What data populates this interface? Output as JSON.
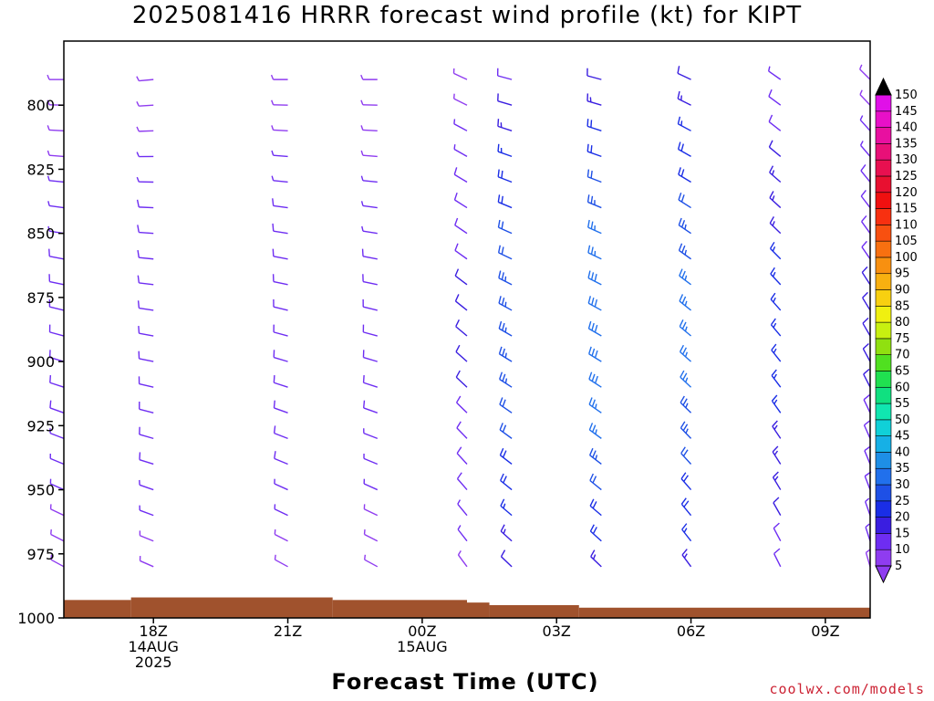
{
  "title": "2025081416 HRRR forecast wind profile (kt) for KIPT",
  "credit": "coolwx.com/models",
  "chart_data": {
    "type": "wind-profile",
    "title": "2025081416 HRRR forecast wind profile (kt) for KIPT",
    "xlabel": "Forecast Time (UTC)",
    "ylabel": "",
    "ylim": [
      1000,
      775
    ],
    "xlim_hours": [
      16,
      34
    ],
    "y_ticks": [
      800,
      825,
      850,
      875,
      900,
      925,
      950,
      975,
      1000
    ],
    "x_ticks": [
      {
        "hour": 18,
        "lines": [
          "18Z",
          "14AUG",
          "2025"
        ]
      },
      {
        "hour": 21,
        "lines": [
          "21Z"
        ]
      },
      {
        "hour": 24,
        "lines": [
          "00Z",
          "15AUG"
        ]
      },
      {
        "hour": 27,
        "lines": [
          "03Z"
        ]
      },
      {
        "hour": 30,
        "lines": [
          "06Z"
        ]
      },
      {
        "hour": 33,
        "lines": [
          "09Z"
        ]
      }
    ],
    "colorbar": {
      "levels": [
        5,
        10,
        15,
        20,
        25,
        30,
        35,
        40,
        45,
        50,
        55,
        60,
        65,
        70,
        75,
        80,
        85,
        90,
        95,
        100,
        105,
        110,
        115,
        120,
        125,
        130,
        135,
        140,
        145,
        150
      ],
      "colors": [
        "#8f3cf0",
        "#6e2df2",
        "#3a1ee0",
        "#1a2ee6",
        "#1e50e6",
        "#2170ec",
        "#1e8fe6",
        "#16b0e6",
        "#10d0d8",
        "#10e6b0",
        "#10e080",
        "#20e050",
        "#50e020",
        "#90e010",
        "#c8f010",
        "#f0f010",
        "#f8d010",
        "#f8b010",
        "#f89010",
        "#f87010",
        "#f85010",
        "#f83010",
        "#f01010",
        "#e81030",
        "#e81050",
        "#e81078",
        "#e810a0",
        "#e810c8",
        "#e010e8",
        "#000000"
      ]
    },
    "terrain": {
      "color": "#a0522d",
      "segments": [
        {
          "from": 16.0,
          "to": 17.5,
          "p": 993
        },
        {
          "from": 17.5,
          "to": 22.0,
          "p": 992
        },
        {
          "from": 22.0,
          "to": 25.0,
          "p": 993
        },
        {
          "from": 25.0,
          "to": 25.5,
          "p": 994
        },
        {
          "from": 25.5,
          "to": 27.5,
          "p": 995
        },
        {
          "from": 27.5,
          "to": 34.0,
          "p": 996
        }
      ]
    },
    "pressure_levels": [
      790,
      800,
      810,
      820,
      830,
      840,
      850,
      860,
      870,
      880,
      890,
      900,
      910,
      920,
      930,
      940,
      950,
      960,
      970,
      980
    ],
    "series": [
      {
        "hour": 16,
        "surface": 993,
        "dir": 285,
        "spd": 8
      },
      {
        "hour": 18,
        "surface": 992,
        "dir": 280,
        "spd": 9
      },
      {
        "hour": 21,
        "surface": 992,
        "dir": 285,
        "spd": 9
      },
      {
        "hour": 23,
        "surface": 992,
        "dir": 285,
        "spd": 8
      },
      {
        "hour": 25,
        "surface": 993,
        "dir": 310,
        "spd": 10
      },
      {
        "hour": 26,
        "surface": 994,
        "dir": 300,
        "spd": 20
      },
      {
        "hour": 28,
        "surface": 995,
        "dir": 300,
        "spd": 24
      },
      {
        "hour": 30,
        "surface": 996,
        "dir": 310,
        "spd": 22
      },
      {
        "hour": 32,
        "surface": 996,
        "dir": 320,
        "spd": 15
      },
      {
        "hour": 34,
        "surface": 996,
        "dir": 330,
        "spd": 10
      }
    ]
  }
}
